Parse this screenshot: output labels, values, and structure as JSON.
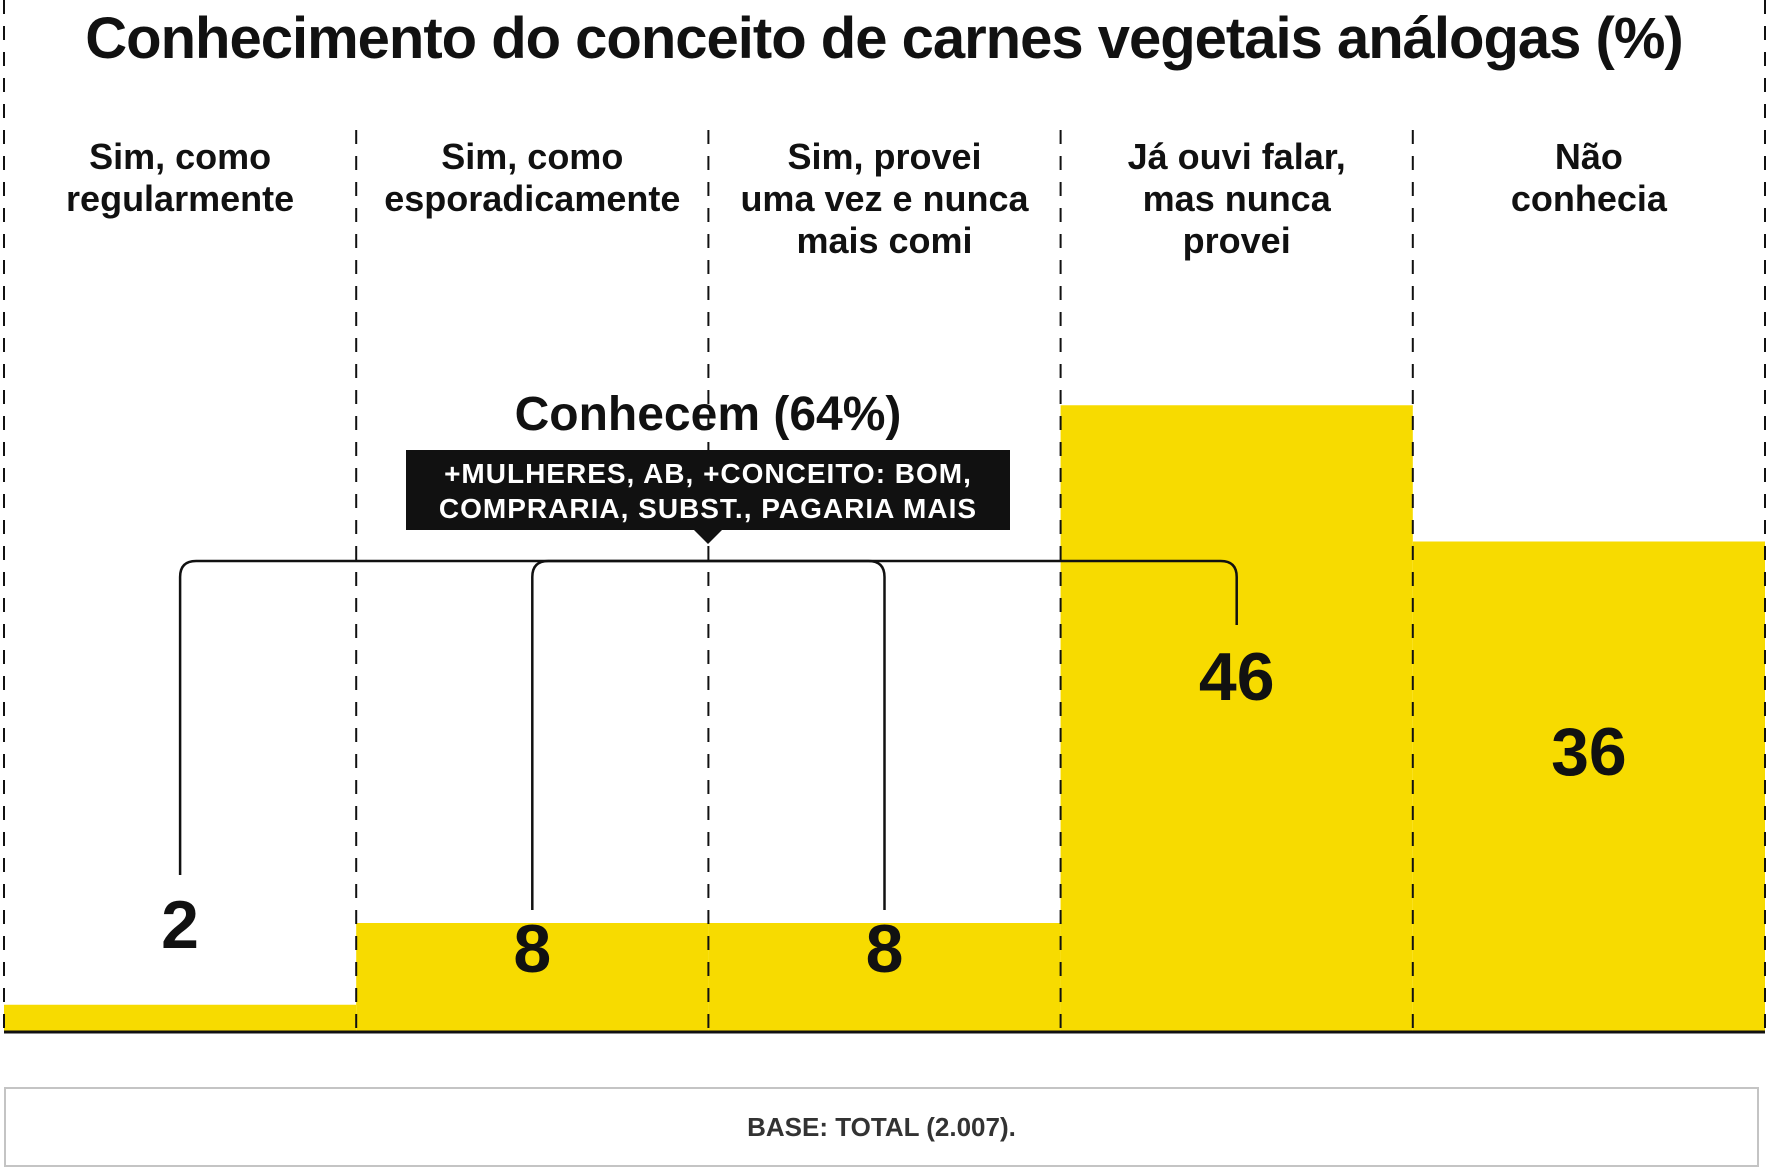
{
  "chart_data": {
    "type": "bar",
    "title": "Conhecimento do conceito de carnes vegetais análogas (%)",
    "categories": [
      [
        "Sim, como",
        "regularmente"
      ],
      [
        "Sim, como",
        "esporadicamente"
      ],
      [
        "Sim, provei",
        "uma vez e nunca",
        "mais comi"
      ],
      [
        "Já ouvi falar,",
        "mas nunca",
        "provei"
      ],
      [
        "Não",
        "conhecia"
      ]
    ],
    "values": [
      2,
      8,
      8,
      46,
      36
    ],
    "value_labels": [
      "2",
      "8",
      "8",
      "46",
      "36"
    ],
    "ylim": [
      0,
      64
    ],
    "bar_color": "#F7DB00",
    "group": {
      "label": "Conhecem (64%)",
      "members": [
        0,
        1,
        2,
        3
      ],
      "note_lines": [
        "+MULHERES, AB, +CONCEITO: BOM,",
        "COMPRARIA, SUBST., PAGARIA MAIS"
      ]
    }
  },
  "footer": {
    "base": "BASE: TOTAL (2.007)."
  }
}
